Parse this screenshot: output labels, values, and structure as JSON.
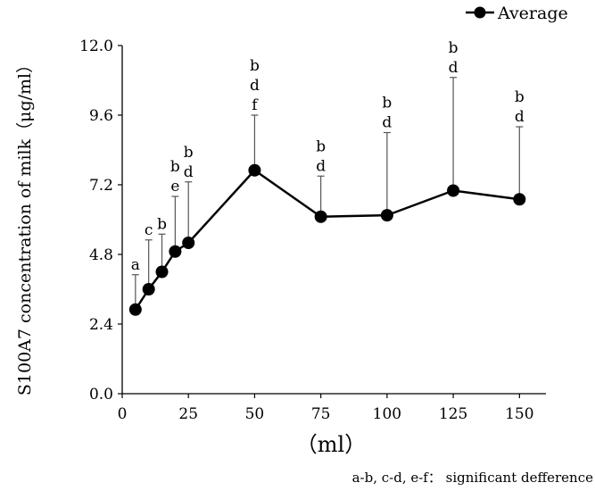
{
  "chart_data": {
    "type": "line",
    "title": "",
    "xlabel": "（ml）",
    "ylabel": "S100A7 concentration of milk（μg/ml）",
    "xlim": [
      0,
      160
    ],
    "ylim": [
      0,
      12
    ],
    "x_ticks": [
      "0",
      "25",
      "50",
      "75",
      "100",
      "125",
      "150"
    ],
    "y_ticks": [
      "0.0",
      "2.4",
      "4.8",
      "7.2",
      "9.6",
      "12.0"
    ],
    "grid": false,
    "legend": {
      "position": "top-right"
    },
    "series": [
      {
        "name": "Average",
        "color": "#000000",
        "marker": "circle",
        "x": [
          5,
          10,
          15,
          20,
          25,
          50,
          75,
          100,
          125,
          150
        ],
        "y": [
          2.9,
          3.6,
          4.2,
          4.9,
          5.2,
          7.7,
          6.1,
          6.15,
          7.0,
          6.7
        ],
        "error_upper": [
          4.1,
          5.3,
          5.5,
          6.8,
          7.3,
          9.6,
          7.5,
          9.0,
          10.9,
          9.2
        ]
      }
    ],
    "annotations": [
      {
        "x": 5,
        "lines": [
          "a"
        ]
      },
      {
        "x": 10,
        "lines": [
          "c"
        ]
      },
      {
        "x": 15,
        "lines": [
          "b"
        ]
      },
      {
        "x": 20,
        "lines": [
          "b",
          "e"
        ]
      },
      {
        "x": 25,
        "lines": [
          "b",
          "d"
        ]
      },
      {
        "x": 50,
        "lines": [
          "b",
          "d",
          "f"
        ]
      },
      {
        "x": 75,
        "lines": [
          "b",
          "d"
        ]
      },
      {
        "x": 100,
        "lines": [
          "b",
          "d"
        ]
      },
      {
        "x": 125,
        "lines": [
          "b",
          "d"
        ]
      },
      {
        "x": 150,
        "lines": [
          "b",
          "d"
        ]
      }
    ],
    "footnote": "a-b,  c-d,  e-f：  significant defference"
  }
}
